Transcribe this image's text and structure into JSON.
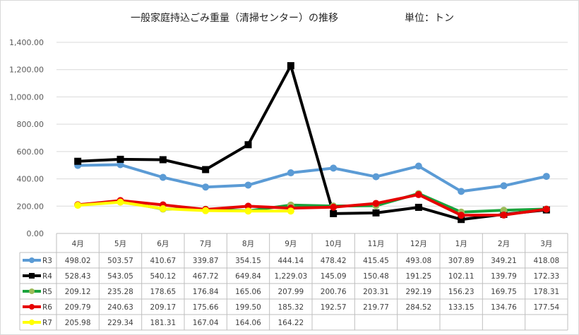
{
  "chart_data": {
    "type": "line",
    "title": "一般家庭持込ごみ重量（清掃センター）の推移",
    "unit_label": "単位：トン",
    "categories": [
      "4月",
      "5月",
      "6月",
      "7月",
      "8月",
      "9月",
      "10月",
      "11月",
      "12月",
      "1月",
      "2月",
      "3月"
    ],
    "y_ticks": [
      "0.00",
      "200.00",
      "400.00",
      "600.00",
      "800.00",
      "1,000.00",
      "1,200.00",
      "1,400.00"
    ],
    "ylim": [
      0,
      1400
    ],
    "grid": true,
    "legend_placement": "data-table-left",
    "series": [
      {
        "name": "R3",
        "color": "#5b9bd5",
        "marker": "circle",
        "values": [
          498.02,
          503.57,
          410.67,
          339.87,
          354.15,
          444.14,
          478.42,
          415.45,
          493.08,
          307.89,
          349.21,
          418.08
        ],
        "labels": [
          "498.02",
          "503.57",
          "410.67",
          "339.87",
          "354.15",
          "444.14",
          "478.42",
          "415.45",
          "493.08",
          "307.89",
          "349.21",
          "418.08"
        ]
      },
      {
        "name": "R4",
        "color": "#000000",
        "marker": "square",
        "values": [
          528.43,
          543.05,
          540.12,
          467.72,
          649.84,
          1229.03,
          145.09,
          150.48,
          191.25,
          102.11,
          139.79,
          172.33
        ],
        "labels": [
          "528.43",
          "543.05",
          "540.12",
          "467.72",
          "649.84",
          "1,229.03",
          "145.09",
          "150.48",
          "191.25",
          "102.11",
          "139.79",
          "172.33"
        ]
      },
      {
        "name": "R5",
        "color": "#1aa33c",
        "marker": "circle",
        "marker_color": "#9bbb59",
        "values": [
          209.12,
          235.28,
          178.65,
          176.84,
          165.06,
          207.99,
          200.76,
          203.31,
          292.19,
          156.23,
          169.75,
          178.31
        ],
        "labels": [
          "209.12",
          "235.28",
          "178.65",
          "176.84",
          "165.06",
          "207.99",
          "200.76",
          "203.31",
          "292.19",
          "156.23",
          "169.75",
          "178.31"
        ]
      },
      {
        "name": "R6",
        "color": "#e60000",
        "marker": "circle",
        "values": [
          209.79,
          240.63,
          209.17,
          175.66,
          199.5,
          185.32,
          192.57,
          219.77,
          284.52,
          133.15,
          134.76,
          177.54
        ],
        "labels": [
          "209.79",
          "240.63",
          "209.17",
          "175.66",
          "199.50",
          "185.32",
          "192.57",
          "219.77",
          "284.52",
          "133.15",
          "134.76",
          "177.54"
        ]
      },
      {
        "name": "R7",
        "color": "#ffff00",
        "marker": "circle",
        "values": [
          205.98,
          229.34,
          181.31,
          167.04,
          164.06,
          164.22,
          null,
          null,
          null,
          null,
          null,
          null
        ],
        "labels": [
          "205.98",
          "229.34",
          "181.31",
          "167.04",
          "164.06",
          "164.22",
          "",
          "",
          "",
          "",
          "",
          ""
        ]
      }
    ]
  }
}
